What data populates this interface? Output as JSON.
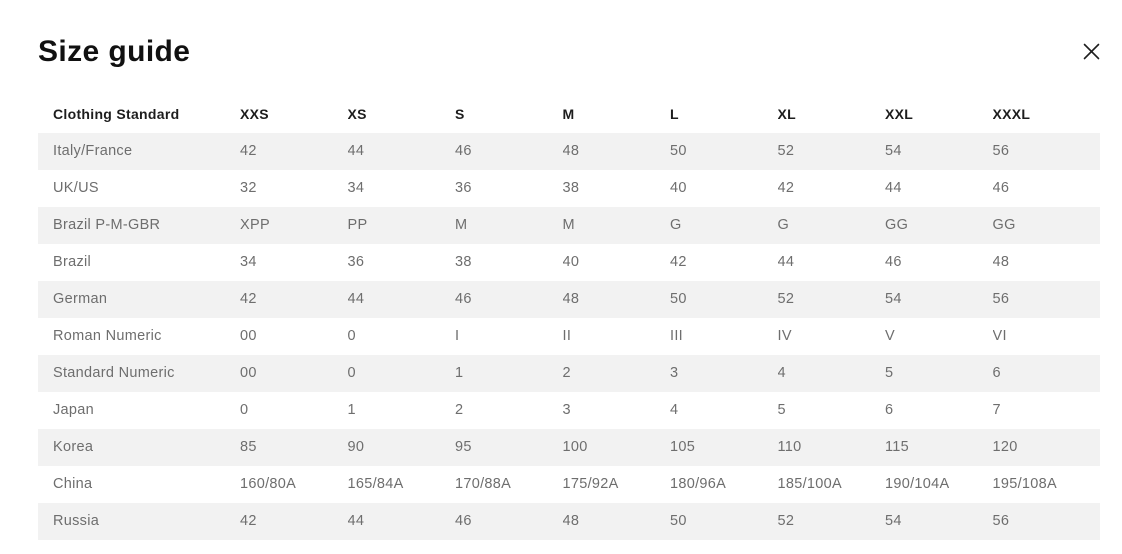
{
  "modal": {
    "title": "Size guide",
    "close_icon": "✕"
  },
  "colors": {
    "background": "#ffffff",
    "stripe": "#f2f2f2",
    "header_text": "#1d1d1d",
    "row_text": "#6e6e6e",
    "title_text": "#111111"
  },
  "table": {
    "columns": [
      "Clothing Standard",
      "XXS",
      "XS",
      "S",
      "M",
      "L",
      "XL",
      "XXL",
      "XXXL"
    ],
    "rows": [
      {
        "label": "Italy/France",
        "values": [
          "42",
          "44",
          "46",
          "48",
          "50",
          "52",
          "54",
          "56"
        ]
      },
      {
        "label": "UK/US",
        "values": [
          "32",
          "34",
          "36",
          "38",
          "40",
          "42",
          "44",
          "46"
        ]
      },
      {
        "label": "Brazil P-M-GBR",
        "values": [
          "XPP",
          "PP",
          "M",
          "M",
          "G",
          "G",
          "GG",
          "GG"
        ]
      },
      {
        "label": "Brazil",
        "values": [
          "34",
          "36",
          "38",
          "40",
          "42",
          "44",
          "46",
          "48"
        ]
      },
      {
        "label": "German",
        "values": [
          "42",
          "44",
          "46",
          "48",
          "50",
          "52",
          "54",
          "56"
        ]
      },
      {
        "label": "Roman Numeric",
        "values": [
          "00",
          "0",
          "I",
          "II",
          "III",
          "IV",
          "V",
          "VI"
        ]
      },
      {
        "label": "Standard Numeric",
        "values": [
          "00",
          "0",
          "1",
          "2",
          "3",
          "4",
          "5",
          "6"
        ]
      },
      {
        "label": "Japan",
        "values": [
          "0",
          "1",
          "2",
          "3",
          "4",
          "5",
          "6",
          "7"
        ]
      },
      {
        "label": "Korea",
        "values": [
          "85",
          "90",
          "95",
          "100",
          "105",
          "110",
          "115",
          "120"
        ]
      },
      {
        "label": "China",
        "values": [
          "160/80A",
          "165/84A",
          "170/88A",
          "175/92A",
          "180/96A",
          "185/100A",
          "190/104A",
          "195/108A"
        ]
      },
      {
        "label": "Russia",
        "values": [
          "42",
          "44",
          "46",
          "48",
          "50",
          "52",
          "54",
          "56"
        ]
      }
    ]
  }
}
